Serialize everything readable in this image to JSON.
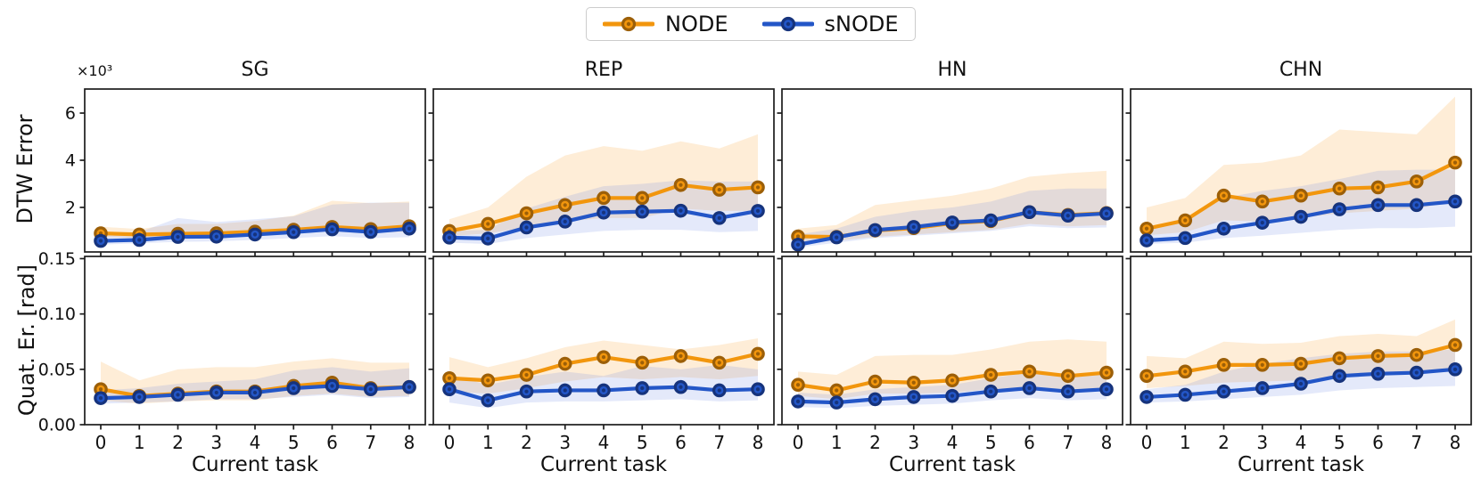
{
  "legend": {
    "items": [
      {
        "label": "NODE",
        "color": "#f2960d",
        "edge_color": "#9c5f08"
      },
      {
        "label": "sNODE",
        "color": "#2356c7",
        "edge_color": "#16337c"
      }
    ]
  },
  "colors": {
    "node_line": "#f2960d",
    "node_edge": "#9c5f08",
    "node_band": "rgba(248,166,54,0.20)",
    "snode_line": "#2356c7",
    "snode_edge": "#16337c",
    "snode_band": "rgba(105,135,225,0.18)",
    "axis": "#1c1c1c"
  },
  "chart_data": {
    "type": "line",
    "x": [
      0,
      1,
      2,
      3,
      4,
      5,
      6,
      7,
      8
    ],
    "xticks": [
      0,
      1,
      2,
      3,
      4,
      5,
      6,
      7,
      8
    ],
    "xlabel": "Current task",
    "col_titles": [
      "SG",
      "REP",
      "HN",
      "CHN"
    ],
    "row_labels": [
      "DTW Error",
      "Quat. Er. [rad]"
    ],
    "offset_text": "×10³",
    "legend_entries": [
      "NODE",
      "sNODE"
    ],
    "rows": [
      {
        "ylabel": "DTW Error",
        "ylim": [
          0.11,
          7.02
        ],
        "yticks": [
          2,
          4,
          6
        ],
        "tick_format": "int",
        "units": "×10³"
      },
      {
        "ylabel": "Quat. Er. [rad]",
        "ylim": [
          0,
          0.152
        ],
        "yticks": [
          0.0,
          0.05,
          0.1,
          0.15
        ],
        "tick_format": "2dp",
        "units": "rad"
      }
    ],
    "subplots": [
      {
        "id": "dtw-sg",
        "row": 0,
        "col": 0,
        "title": "SG",
        "series": [
          {
            "name": "NODE",
            "values": [
              0.9,
              0.85,
              0.88,
              0.9,
              0.97,
              1.05,
              1.17,
              1.08,
              1.2
            ],
            "band_lo": [
              0.75,
              0.7,
              0.76,
              0.78,
              0.84,
              0.92,
              1.0,
              0.93,
              0.97
            ],
            "band_hi": [
              1.18,
              1.08,
              1.3,
              1.3,
              1.42,
              1.65,
              2.28,
              2.18,
              2.25
            ]
          },
          {
            "name": "sNODE",
            "values": [
              0.58,
              0.62,
              0.75,
              0.76,
              0.85,
              0.95,
              1.07,
              0.96,
              1.1
            ],
            "band_lo": [
              0.42,
              0.48,
              0.54,
              0.56,
              0.62,
              0.7,
              0.78,
              0.7,
              0.74
            ],
            "band_hi": [
              0.9,
              0.95,
              1.55,
              1.38,
              1.5,
              1.62,
              2.12,
              2.2,
              2.2
            ]
          }
        ]
      },
      {
        "id": "dtw-rep",
        "row": 0,
        "col": 1,
        "title": "REP",
        "series": [
          {
            "name": "NODE",
            "values": [
              1.0,
              1.3,
              1.75,
              2.1,
              2.4,
              2.4,
              2.95,
              2.75,
              2.85
            ],
            "band_lo": [
              0.78,
              0.9,
              1.15,
              1.4,
              1.55,
              1.55,
              1.95,
              1.85,
              1.85
            ],
            "band_hi": [
              1.5,
              2.0,
              3.3,
              4.2,
              4.6,
              4.4,
              4.8,
              4.5,
              5.1
            ]
          },
          {
            "name": "sNODE",
            "values": [
              0.72,
              0.68,
              1.15,
              1.4,
              1.78,
              1.82,
              1.86,
              1.55,
              1.85
            ],
            "band_lo": [
              0.5,
              0.45,
              0.7,
              0.85,
              1.0,
              1.05,
              1.05,
              0.95,
              1.0
            ],
            "band_hi": [
              1.0,
              1.05,
              1.95,
              2.45,
              2.9,
              3.0,
              3.15,
              3.1,
              3.1
            ]
          }
        ]
      },
      {
        "id": "dtw-hn",
        "row": 0,
        "col": 2,
        "title": "HN",
        "series": [
          {
            "name": "NODE",
            "values": [
              0.77,
              0.75,
              1.02,
              1.12,
              1.33,
              1.42,
              1.8,
              1.68,
              1.76
            ],
            "band_lo": [
              0.55,
              0.58,
              0.75,
              0.85,
              0.95,
              1.05,
              1.3,
              1.2,
              1.25
            ],
            "band_hi": [
              1.1,
              1.25,
              2.1,
              2.3,
              2.5,
              2.8,
              3.3,
              3.45,
              3.55
            ]
          },
          {
            "name": "sNODE",
            "values": [
              0.42,
              0.73,
              1.04,
              1.17,
              1.36,
              1.45,
              1.8,
              1.65,
              1.74
            ],
            "band_lo": [
              0.3,
              0.5,
              0.7,
              0.8,
              0.9,
              1.0,
              1.2,
              1.12,
              1.15
            ],
            "band_hi": [
              0.85,
              1.1,
              1.6,
              1.85,
              2.0,
              2.25,
              2.7,
              2.8,
              2.8
            ]
          }
        ]
      },
      {
        "id": "dtw-chn",
        "row": 0,
        "col": 3,
        "title": "CHN",
        "series": [
          {
            "name": "NODE",
            "values": [
              1.1,
              1.45,
              2.5,
              2.25,
              2.5,
              2.8,
              2.85,
              3.1,
              3.9
            ],
            "band_lo": [
              0.82,
              0.95,
              1.45,
              1.4,
              1.55,
              1.75,
              1.85,
              1.95,
              2.25
            ],
            "band_hi": [
              2.0,
              2.4,
              3.8,
              3.9,
              4.2,
              5.3,
              5.2,
              5.1,
              6.7
            ]
          },
          {
            "name": "sNODE",
            "values": [
              0.6,
              0.7,
              1.1,
              1.35,
              1.6,
              1.92,
              2.1,
              2.1,
              2.25
            ],
            "band_lo": [
              0.45,
              0.5,
              0.7,
              0.8,
              0.92,
              1.05,
              1.12,
              1.12,
              1.18
            ],
            "band_hi": [
              1.2,
              1.4,
              2.4,
              2.7,
              2.9,
              3.2,
              3.55,
              3.6,
              3.6
            ]
          }
        ]
      },
      {
        "id": "quat-sg",
        "row": 1,
        "col": 0,
        "title": "SG",
        "series": [
          {
            "name": "NODE",
            "values": [
              0.032,
              0.026,
              0.028,
              0.03,
              0.03,
              0.035,
              0.038,
              0.033,
              0.034
            ],
            "band_lo": [
              0.022,
              0.019,
              0.021,
              0.022,
              0.022,
              0.026,
              0.028,
              0.025,
              0.026
            ],
            "band_hi": [
              0.057,
              0.04,
              0.05,
              0.052,
              0.052,
              0.057,
              0.06,
              0.056,
              0.056
            ]
          },
          {
            "name": "sNODE",
            "values": [
              0.024,
              0.025,
              0.027,
              0.029,
              0.029,
              0.033,
              0.035,
              0.032,
              0.034
            ],
            "band_lo": [
              0.019,
              0.02,
              0.021,
              0.023,
              0.023,
              0.025,
              0.027,
              0.024,
              0.025
            ],
            "band_hi": [
              0.031,
              0.033,
              0.037,
              0.039,
              0.041,
              0.049,
              0.052,
              0.048,
              0.051
            ]
          }
        ]
      },
      {
        "id": "quat-rep",
        "row": 1,
        "col": 1,
        "title": "REP",
        "series": [
          {
            "name": "NODE",
            "values": [
              0.042,
              0.04,
              0.045,
              0.055,
              0.061,
              0.056,
              0.062,
              0.056,
              0.064
            ],
            "band_lo": [
              0.03,
              0.028,
              0.033,
              0.039,
              0.043,
              0.041,
              0.043,
              0.041,
              0.044
            ],
            "band_hi": [
              0.061,
              0.052,
              0.06,
              0.07,
              0.076,
              0.072,
              0.068,
              0.072,
              0.078
            ]
          },
          {
            "name": "sNODE",
            "values": [
              0.032,
              0.022,
              0.03,
              0.031,
              0.031,
              0.033,
              0.034,
              0.031,
              0.032
            ],
            "band_lo": [
              0.02,
              0.015,
              0.02,
              0.021,
              0.021,
              0.022,
              0.023,
              0.021,
              0.022
            ],
            "band_hi": [
              0.045,
              0.036,
              0.043,
              0.048,
              0.044,
              0.053,
              0.05,
              0.054,
              0.05
            ]
          }
        ]
      },
      {
        "id": "quat-hn",
        "row": 1,
        "col": 2,
        "title": "HN",
        "series": [
          {
            "name": "NODE",
            "values": [
              0.036,
              0.031,
              0.039,
              0.038,
              0.04,
              0.045,
              0.048,
              0.044,
              0.047
            ],
            "band_lo": [
              0.026,
              0.023,
              0.028,
              0.028,
              0.029,
              0.032,
              0.034,
              0.032,
              0.033
            ],
            "band_hi": [
              0.048,
              0.045,
              0.062,
              0.063,
              0.063,
              0.068,
              0.075,
              0.077,
              0.075
            ]
          },
          {
            "name": "sNODE",
            "values": [
              0.021,
              0.02,
              0.023,
              0.025,
              0.026,
              0.03,
              0.033,
              0.03,
              0.032
            ],
            "band_lo": [
              0.016,
              0.015,
              0.017,
              0.018,
              0.019,
              0.022,
              0.024,
              0.022,
              0.023
            ],
            "band_hi": [
              0.029,
              0.027,
              0.032,
              0.034,
              0.036,
              0.042,
              0.047,
              0.044,
              0.046
            ]
          }
        ]
      },
      {
        "id": "quat-chn",
        "row": 1,
        "col": 3,
        "title": "CHN",
        "series": [
          {
            "name": "NODE",
            "values": [
              0.044,
              0.048,
              0.054,
              0.054,
              0.055,
              0.06,
              0.062,
              0.063,
              0.072
            ],
            "band_lo": [
              0.033,
              0.035,
              0.038,
              0.039,
              0.04,
              0.044,
              0.046,
              0.047,
              0.05
            ],
            "band_hi": [
              0.062,
              0.06,
              0.075,
              0.073,
              0.074,
              0.08,
              0.082,
              0.08,
              0.095
            ]
          },
          {
            "name": "sNODE",
            "values": [
              0.025,
              0.027,
              0.03,
              0.033,
              0.037,
              0.044,
              0.046,
              0.047,
              0.05
            ],
            "band_lo": [
              0.02,
              0.021,
              0.023,
              0.025,
              0.027,
              0.031,
              0.033,
              0.034,
              0.035
            ],
            "band_hi": [
              0.032,
              0.036,
              0.048,
              0.055,
              0.06,
              0.064,
              0.066,
              0.066,
              0.068
            ]
          }
        ]
      }
    ]
  }
}
